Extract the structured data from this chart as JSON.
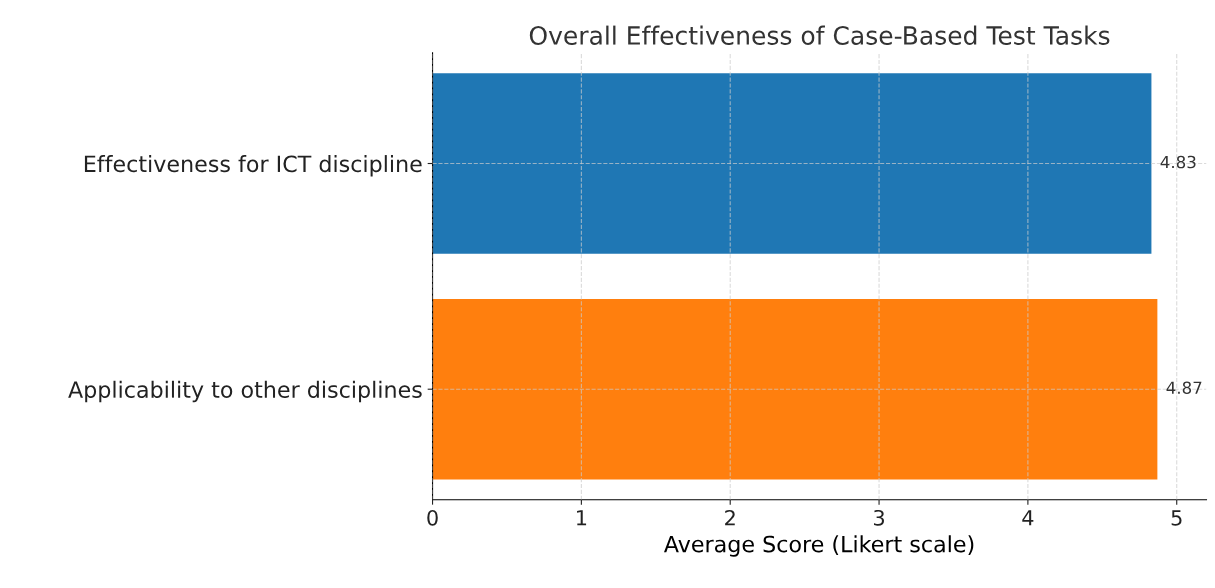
{
  "chart_data": {
    "type": "bar",
    "orientation": "horizontal",
    "title": "Overall Effectiveness of Case-Based Test Tasks",
    "categories": [
      "Effectiveness for ICT discipline",
      "Applicability to other disciplines"
    ],
    "values": [
      4.83,
      4.87
    ],
    "colors": [
      "#1f77b4",
      "#ff7f0e"
    ],
    "xlabel": "Average Score (Likert scale)",
    "xlim": [
      0,
      5.2
    ],
    "xticks": [
      0,
      1,
      2,
      3,
      4,
      5
    ],
    "grid": true,
    "data_labels": true
  }
}
